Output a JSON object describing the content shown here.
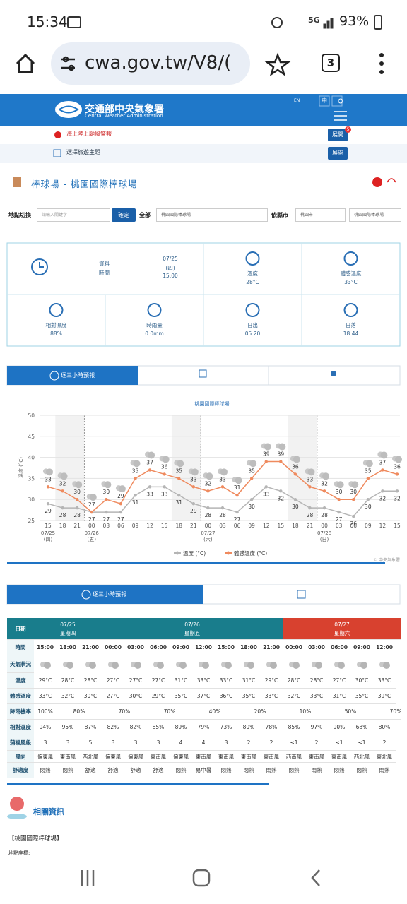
{
  "status_bar": {
    "time": "15:34",
    "network": "5G",
    "battery": "93%"
  },
  "browser": {
    "url": "cwa.gov.tw/V8/(",
    "tabs": "3"
  },
  "header": {
    "title": "交通部中央氣象署",
    "subtitle": "Central Weather Administration",
    "lang_en": "EN",
    "lang_zh": "中"
  },
  "alerts": [
    {
      "text": "海上陸上颱風警報",
      "button": "展開",
      "badge": "5"
    },
    {
      "text": "選擇旅遊主題",
      "button": "展開"
    }
  ],
  "location_title": "棒球場 - 桃園國際棒球場",
  "form": {
    "label": "地點切換",
    "placeholder": "請輸入關鍵字",
    "button": "確定",
    "category": "全部",
    "select1": "桃園國際棒球場",
    "county_label": "依縣市",
    "select2": "桃園市",
    "select3": "桃園國際棒球場"
  },
  "observation": {
    "time_label": "資料時間",
    "time_value": [
      "07/25",
      "(四)",
      "15:00"
    ],
    "cells": [
      {
        "label": "溫度",
        "value": "28°C"
      },
      {
        "label": "體感溫度",
        "value": "33°C"
      },
      {
        "label": "相對濕度",
        "value": "88%"
      },
      {
        "label": "時雨量",
        "value": "0.0mm"
      },
      {
        "label": "日出",
        "value": "05:20"
      },
      {
        "label": "日落",
        "value": "18:44"
      }
    ]
  },
  "tab": "逐三小時預報",
  "chart_data": {
    "type": "line",
    "title": "桃園國際棒球場",
    "y_label": "溫度 (°C)",
    "categories": [
      "15",
      "18",
      "21",
      "00",
      "03",
      "06",
      "09",
      "12",
      "15",
      "18",
      "21",
      "00",
      "03",
      "06",
      "09",
      "12",
      "15",
      "18",
      "21",
      "00",
      "03",
      "06",
      "09",
      "12",
      "15"
    ],
    "dates": [
      "07/25",
      null,
      null,
      "07/26",
      null,
      null,
      null,
      null,
      null,
      null,
      null,
      "07/27",
      null,
      null,
      null,
      null,
      null,
      null,
      null,
      "07/28",
      null,
      null,
      null,
      null,
      null
    ],
    "weekdays": [
      "(四)",
      null,
      null,
      "(五)",
      null,
      null,
      null,
      null,
      null,
      null,
      null,
      "(六)",
      null,
      null,
      null,
      null,
      null,
      null,
      null,
      "(日)",
      null,
      null,
      null,
      null,
      null
    ],
    "series": [
      {
        "name": "溫度 (°C)",
        "color": "#b5b5b5",
        "values": [
          29,
          28,
          28,
          27,
          27,
          27,
          31,
          33,
          33,
          31,
          29,
          28,
          28,
          27,
          30,
          33,
          32,
          30,
          28,
          28,
          27,
          26,
          30,
          32,
          32
        ]
      },
      {
        "name": "體感溫度 (°C)",
        "color": "#ef8a5e",
        "values": [
          33,
          32,
          30,
          27,
          30,
          29,
          35,
          37,
          36,
          35,
          33,
          32,
          33,
          31,
          35,
          39,
          39,
          36,
          33,
          32,
          30,
          30,
          35,
          37,
          36
        ]
      }
    ],
    "ylim": [
      25,
      50
    ],
    "yticks": [
      25,
      30,
      35,
      40,
      45,
      50
    ],
    "grid": true,
    "credit": "© 中央氣象署"
  },
  "table": {
    "tab": "逐三小時預報",
    "labels": [
      "日期",
      "時間",
      "天氣狀況",
      "溫度",
      "體感溫度",
      "降雨機率",
      "相對濕度",
      "蒲福風級",
      "風向",
      "舒適度"
    ],
    "dates": [
      {
        "date": "07/25",
        "weekday": "星期四"
      },
      {
        "date": "07/26",
        "weekday": "星期五"
      },
      {
        "date": "07/27",
        "weekday": "星期六"
      }
    ],
    "times": [
      "15:00",
      "18:00",
      "21:00",
      "00:00",
      "03:00",
      "06:00",
      "09:00",
      "12:00",
      "15:00",
      "18:00",
      "21:00",
      "00:00",
      "03:00",
      "06:00",
      "09:00",
      "12:00"
    ],
    "temperature": [
      "29°C",
      "28°C",
      "28°C",
      "27°C",
      "27°C",
      "27°C",
      "31°C",
      "33°C",
      "33°C",
      "31°C",
      "29°C",
      "28°C",
      "28°C",
      "27°C",
      "30°C",
      "33°C"
    ],
    "apparent": [
      "33°C",
      "32°C",
      "30°C",
      "27°C",
      "30°C",
      "29°C",
      "35°C",
      "37°C",
      "36°C",
      "35°C",
      "33°C",
      "32°C",
      "33°C",
      "31°C",
      "35°C",
      "39°C"
    ],
    "rain": [
      "100%",
      "80%",
      "70%",
      "70%",
      "40%",
      "20%",
      "10%",
      "50%",
      "70%"
    ],
    "humidity": [
      "94%",
      "95%",
      "87%",
      "82%",
      "82%",
      "85%",
      "89%",
      "79%",
      "73%",
      "80%",
      "78%",
      "85%",
      "97%",
      "90%",
      "68%",
      "80%"
    ],
    "wind_scale": [
      "3",
      "3",
      "5",
      "3",
      "3",
      "3",
      "4",
      "4",
      "3",
      "2",
      "2",
      "≤1",
      "2",
      "≤1",
      "≤1",
      "2"
    ],
    "wind_dir": [
      "偏東風",
      "東南風",
      "西北風",
      "偏東風",
      "偏東風",
      "東南風",
      "偏東風",
      "東南風",
      "東南風",
      "東南風",
      "東南風",
      "西南風",
      "東南風",
      "東南風",
      "西北風",
      "東北風"
    ],
    "comfort": [
      "悶熱",
      "悶熱",
      "舒適",
      "舒適",
      "舒適",
      "舒適",
      "悶熱",
      "易中暑",
      "悶熱",
      "悶熱",
      "悶熱",
      "悶熱",
      "悶熱",
      "悶熱",
      "悶熱",
      "悶熱"
    ]
  },
  "related": {
    "title": "相關資訊",
    "place": "【桃園國際棒球場】",
    "coords_label": "地點座標:"
  }
}
